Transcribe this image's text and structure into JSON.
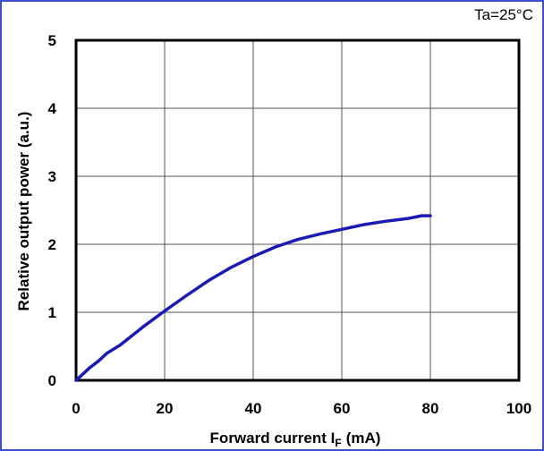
{
  "chart_data": {
    "type": "line",
    "title": "",
    "xlabel": "Forward current",
    "xlabel_symbol": "I",
    "xlabel_subscript": "F",
    "xlabel_unit": "(mA)",
    "ylabel": "Relative output power (a.u.)",
    "annotation": "Ta=25°C",
    "xlim": [
      0,
      100
    ],
    "ylim": [
      0,
      5
    ],
    "x_ticks": [
      0,
      20,
      40,
      60,
      80,
      100
    ],
    "y_ticks": [
      0,
      1,
      2,
      3,
      4,
      5
    ],
    "grid": true,
    "line_color": "#1a1ab4",
    "series": [
      {
        "x": [
          0,
          1,
          2,
          3,
          5,
          7,
          10,
          15,
          20,
          25,
          30,
          35,
          40,
          45,
          50,
          55,
          60,
          65,
          70,
          75,
          78,
          80
        ],
        "y": [
          0,
          0.06,
          0.12,
          0.18,
          0.28,
          0.4,
          0.52,
          0.78,
          1.02,
          1.25,
          1.47,
          1.66,
          1.82,
          1.96,
          2.07,
          2.15,
          2.22,
          2.29,
          2.34,
          2.38,
          2.42,
          2.42
        ]
      }
    ]
  }
}
